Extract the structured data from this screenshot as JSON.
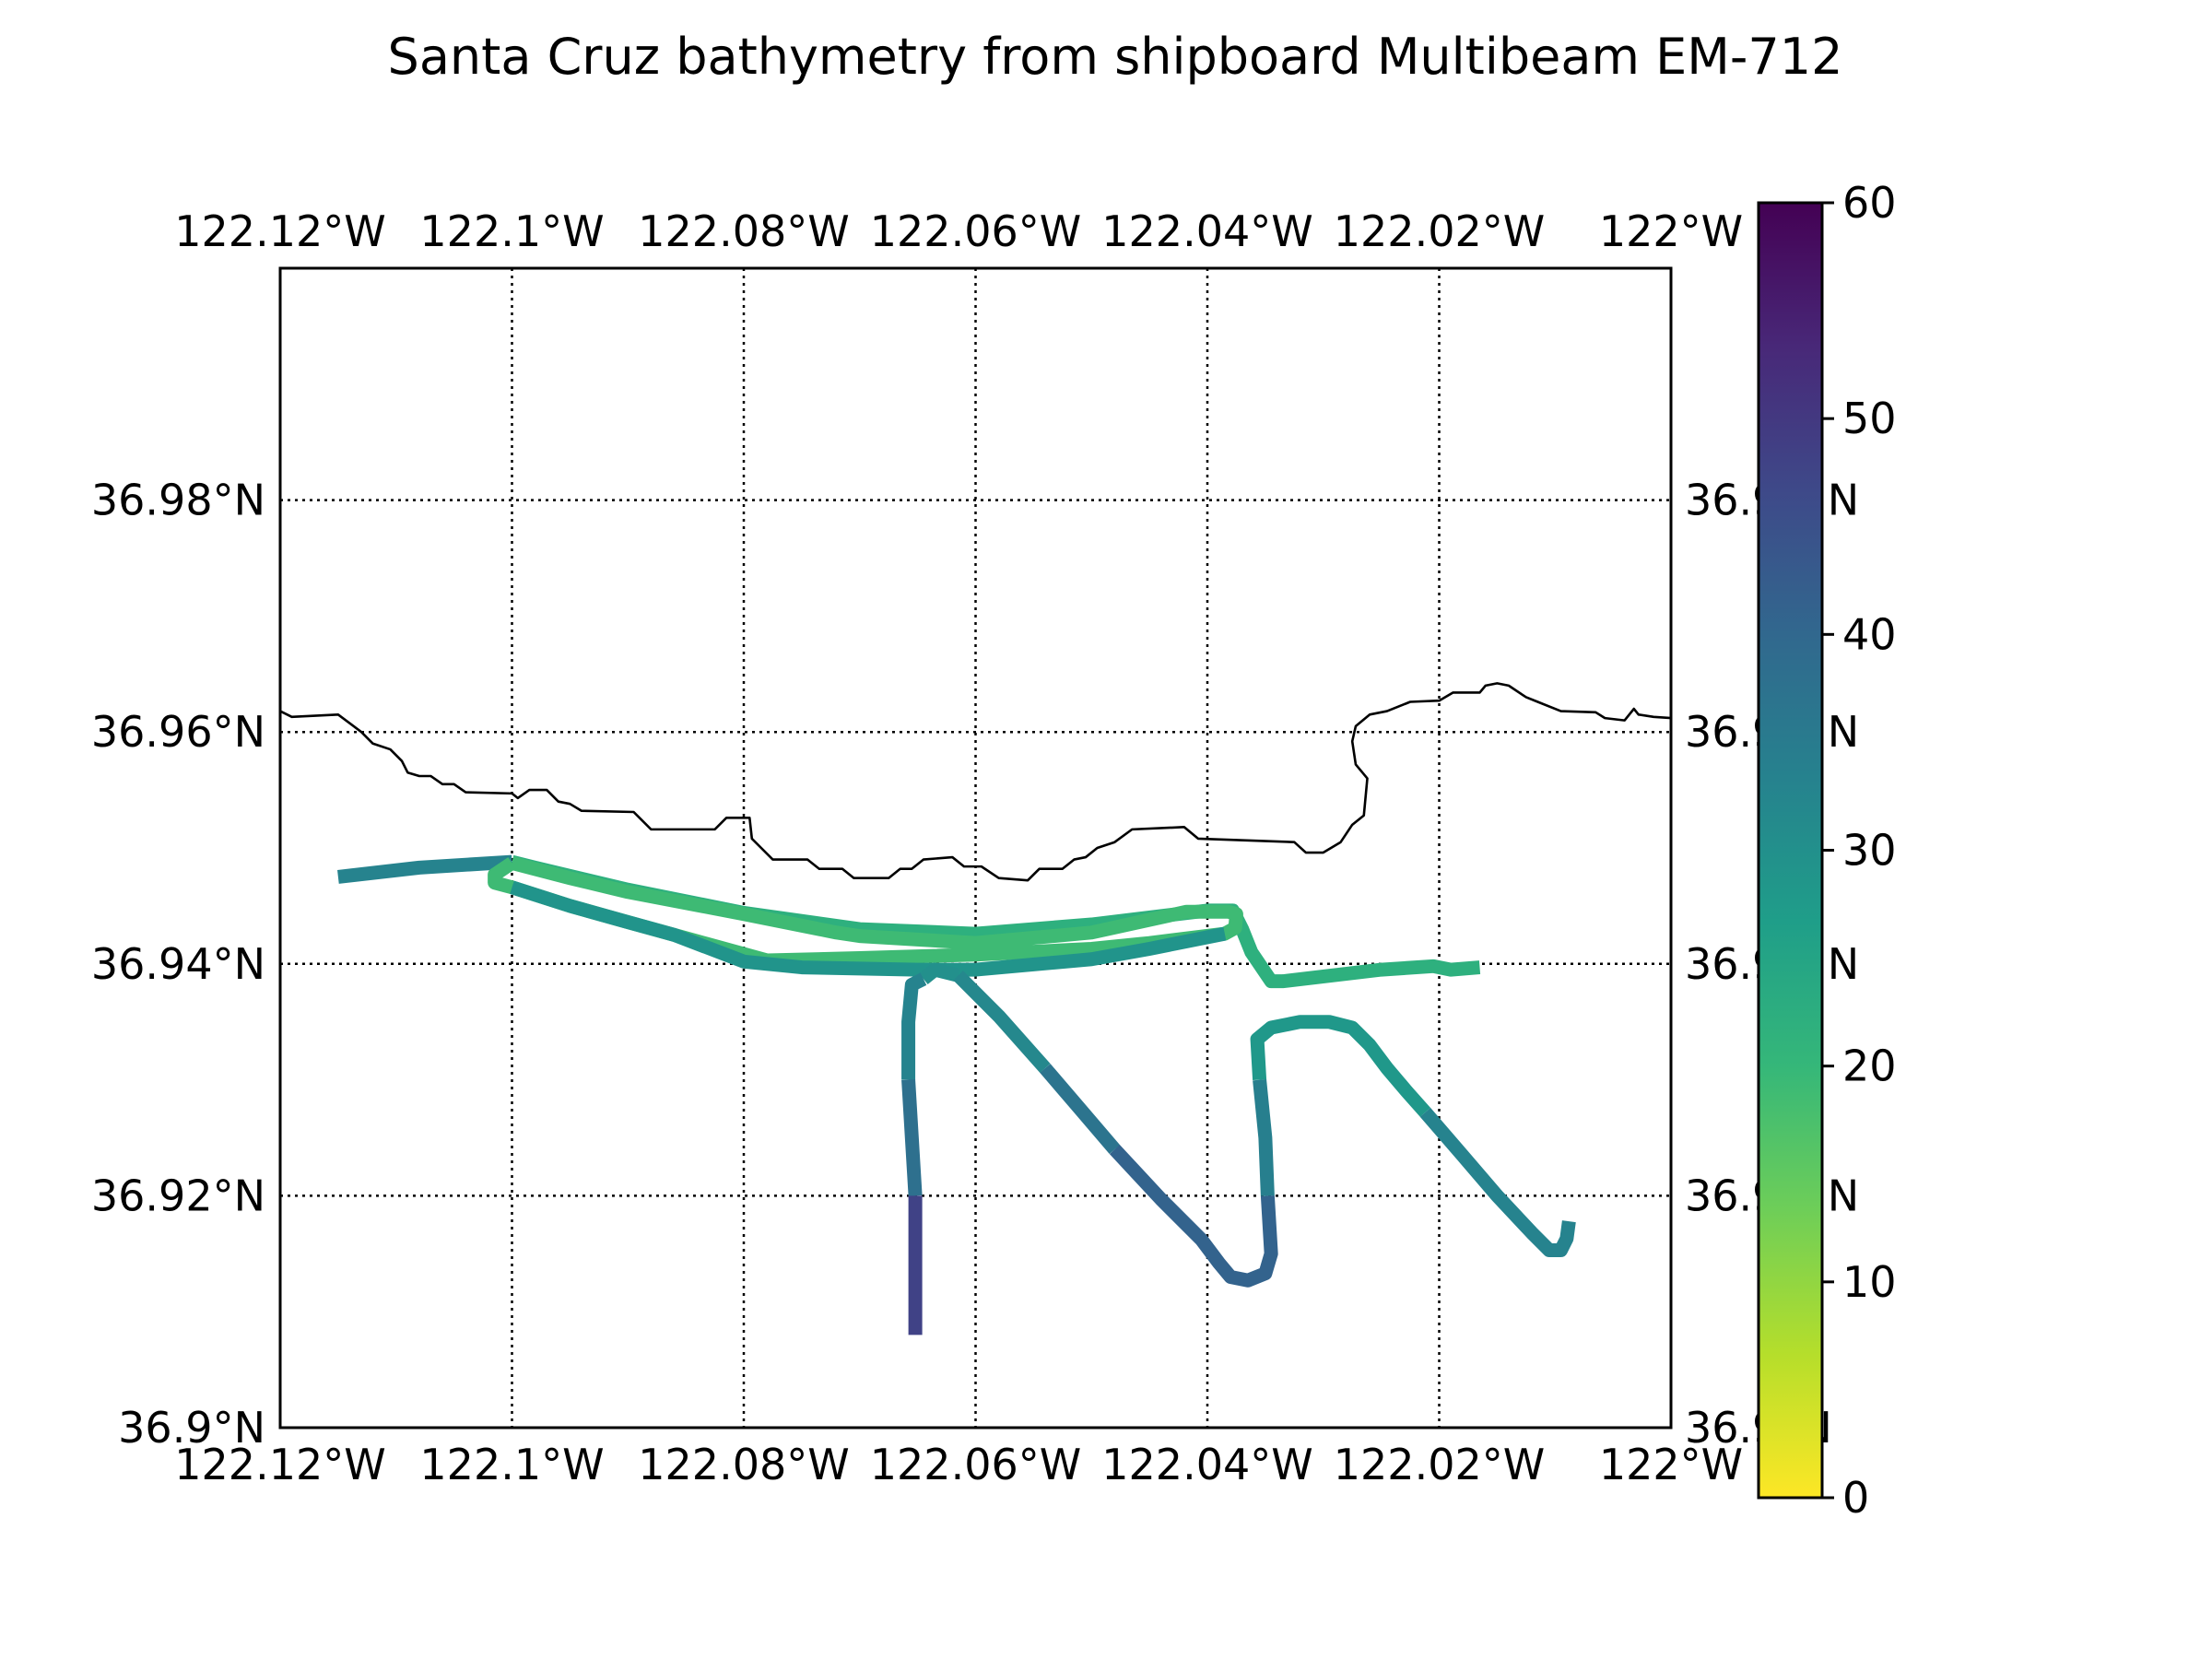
{
  "title": "Santa Cruz bathymetry from shipboard Multibeam EM-712",
  "colormap": "viridis",
  "colormap_stops": [
    "#fde725",
    "#b5de2b",
    "#6ece58",
    "#35b779",
    "#1f9e89",
    "#26828e",
    "#31688e",
    "#3e4989",
    "#482878",
    "#440154"
  ],
  "coastline_color": "#000000",
  "chart_data": {
    "type": "map",
    "grid": true,
    "grid_style": "dotted",
    "xlim": [
      -122.12,
      -122.0
    ],
    "ylim": [
      36.9,
      37.0
    ],
    "xticks": [
      -122.12,
      -122.1,
      -122.08,
      -122.06,
      -122.04,
      -122.02,
      -122.0
    ],
    "xtick_labels": [
      "122.12°W",
      "122.1°W",
      "122.08°W",
      "122.06°W",
      "122.04°W",
      "122.02°W",
      "122°W"
    ],
    "yticks": [
      36.9,
      36.92,
      36.94,
      36.96,
      36.98
    ],
    "ytick_labels": [
      "36.9°N",
      "36.92°N",
      "36.94°N",
      "36.96°N",
      "36.98°N"
    ],
    "ytick_labels_right": [
      "36.9°N",
      "36.92°N",
      "36.94°N",
      "36.96°N",
      "36.98°N"
    ],
    "colorbar": {
      "min": 0,
      "max": 60,
      "ticks": [
        0,
        10,
        20,
        30,
        40,
        50,
        60
      ],
      "tick_labels": [
        "0",
        "10",
        "20",
        "30",
        "40",
        "50",
        "60"
      ]
    },
    "coastline": [
      [
        -122.12,
        36.9618
      ],
      [
        -122.119,
        36.9613
      ],
      [
        -122.115,
        36.9615
      ],
      [
        -122.113,
        36.96
      ],
      [
        -122.112,
        36.959
      ],
      [
        -122.1105,
        36.9585
      ],
      [
        -122.1095,
        36.9575
      ],
      [
        -122.109,
        36.9565
      ],
      [
        -122.108,
        36.9562
      ],
      [
        -122.107,
        36.9562
      ],
      [
        -122.106,
        36.9555
      ],
      [
        -122.105,
        36.9555
      ],
      [
        -122.104,
        36.9548
      ],
      [
        -122.1,
        36.9547
      ],
      [
        -122.0995,
        36.9543
      ],
      [
        -122.0985,
        36.955
      ],
      [
        -122.097,
        36.955
      ],
      [
        -122.096,
        36.954
      ],
      [
        -122.095,
        36.9538
      ],
      [
        -122.094,
        36.9532
      ],
      [
        -122.0895,
        36.9531
      ],
      [
        -122.088,
        36.9516
      ],
      [
        -122.0825,
        36.9516
      ],
      [
        -122.0815,
        36.9526
      ],
      [
        -122.0795,
        36.9526
      ],
      [
        -122.0793,
        36.9508
      ],
      [
        -122.0785,
        36.95
      ],
      [
        -122.0775,
        36.949
      ],
      [
        -122.0745,
        36.949
      ],
      [
        -122.0735,
        36.9482
      ],
      [
        -122.0715,
        36.9482
      ],
      [
        -122.0705,
        36.9474
      ],
      [
        -122.0675,
        36.9474
      ],
      [
        -122.0665,
        36.9482
      ],
      [
        -122.0655,
        36.9482
      ],
      [
        -122.0645,
        36.949
      ],
      [
        -122.062,
        36.9492
      ],
      [
        -122.061,
        36.9484
      ],
      [
        -122.0595,
        36.9484
      ],
      [
        -122.058,
        36.9474
      ],
      [
        -122.0555,
        36.9472
      ],
      [
        -122.0545,
        36.9482
      ],
      [
        -122.0525,
        36.9482
      ],
      [
        -122.0515,
        36.949
      ],
      [
        -122.0505,
        36.9492
      ],
      [
        -122.0495,
        36.95
      ],
      [
        -122.048,
        36.9505
      ],
      [
        -122.0465,
        36.9516
      ],
      [
        -122.042,
        36.9518
      ],
      [
        -122.0408,
        36.9508
      ],
      [
        -122.0325,
        36.9505
      ],
      [
        -122.0315,
        36.9496
      ],
      [
        -122.03,
        36.9496
      ],
      [
        -122.0285,
        36.9505
      ],
      [
        -122.0275,
        36.952
      ],
      [
        -122.0265,
        36.9528
      ],
      [
        -122.0262,
        36.956
      ],
      [
        -122.0272,
        36.9572
      ],
      [
        -122.0275,
        36.9592
      ],
      [
        -122.0272,
        36.9605
      ],
      [
        -122.026,
        36.9615
      ],
      [
        -122.0245,
        36.9618
      ],
      [
        -122.0225,
        36.9626
      ],
      [
        -122.02,
        36.9627
      ],
      [
        -122.0188,
        36.9634
      ],
      [
        -122.0165,
        36.9634
      ],
      [
        -122.016,
        36.964
      ],
      [
        -122.015,
        36.9642
      ],
      [
        -122.014,
        36.964
      ],
      [
        -122.0125,
        36.963
      ],
      [
        -122.0115,
        36.9626
      ],
      [
        -122.0095,
        36.9618
      ],
      [
        -122.0065,
        36.9617
      ],
      [
        -122.0057,
        36.9612
      ],
      [
        -122.004,
        36.961
      ],
      [
        -122.0032,
        36.962
      ],
      [
        -122.0028,
        36.9615
      ],
      [
        -122.0015,
        36.9613
      ],
      [
        -122.0,
        36.9612
      ]
    ],
    "track_segments": [
      {
        "depth": 33,
        "points": [
          [
            -122.115,
            36.9475
          ],
          [
            -122.108,
            36.9483
          ],
          [
            -122.1,
            36.9488
          ]
        ]
      },
      {
        "depth": 22,
        "points": [
          [
            -122.1,
            36.9488
          ],
          [
            -122.098,
            36.9483
          ],
          [
            -122.09,
            36.9464
          ],
          [
            -122.08,
            36.9444
          ],
          [
            -122.07,
            36.943
          ],
          [
            -122.06,
            36.9426
          ],
          [
            -122.05,
            36.9434
          ],
          [
            -122.04,
            36.9446
          ],
          [
            -122.0378,
            36.9446
          ],
          [
            -122.037,
            36.943
          ],
          [
            -122.0362,
            36.941
          ],
          [
            -122.0345,
            36.9385
          ],
          [
            -122.0335,
            36.9385
          ],
          [
            -122.025,
            36.9395
          ],
          [
            -122.0205,
            36.9398
          ],
          [
            -122.019,
            36.9395
          ],
          [
            -122.0165,
            36.9397
          ]
        ]
      },
      {
        "depth": 19,
        "points": [
          [
            -122.1,
            36.9487
          ],
          [
            -122.095,
            36.9474
          ],
          [
            -122.09,
            36.9462
          ],
          [
            -122.08,
            36.9443
          ],
          [
            -122.072,
            36.9427
          ],
          [
            -122.07,
            36.9424
          ],
          [
            -122.065,
            36.9421
          ],
          [
            -122.06,
            36.9418
          ],
          [
            -122.05,
            36.9427
          ],
          [
            -122.045,
            36.9438
          ],
          [
            -122.0418,
            36.9445
          ],
          [
            -122.0382,
            36.9445
          ],
          [
            -122.0375,
            36.9443
          ],
          [
            -122.0376,
            36.9431
          ],
          [
            -122.0385,
            36.9426
          ],
          [
            -122.045,
            36.9418
          ],
          [
            -122.05,
            36.9413
          ],
          [
            -122.06,
            36.9408
          ],
          [
            -122.07,
            36.9405
          ],
          [
            -122.078,
            36.9403
          ],
          [
            -122.086,
            36.9425
          ],
          [
            -122.09,
            36.9436
          ],
          [
            -122.095,
            36.945
          ],
          [
            -122.1,
            36.9466
          ],
          [
            -122.1015,
            36.947
          ],
          [
            -122.1015,
            36.9477
          ],
          [
            -122.1,
            36.9487
          ]
        ]
      },
      {
        "depth": 29,
        "points": [
          [
            -122.1,
            36.9466
          ],
          [
            -122.095,
            36.945
          ],
          [
            -122.09,
            36.9436
          ],
          [
            -122.086,
            36.9425
          ],
          [
            -122.08,
            36.9402
          ],
          [
            -122.075,
            36.9397
          ],
          [
            -122.065,
            36.9395
          ],
          [
            -122.06,
            36.9395
          ],
          [
            -122.05,
            36.9404
          ],
          [
            -122.045,
            36.9413
          ],
          [
            -122.0385,
            36.9426
          ]
        ]
      },
      {
        "depth": 30,
        "points": [
          [
            -122.0645,
            36.9387
          ],
          [
            -122.0635,
            36.9395
          ],
          [
            -122.0615,
            36.939
          ]
        ]
      },
      {
        "depth": 33,
        "points": [
          [
            -122.0645,
            36.9387
          ],
          [
            -122.0655,
            36.9382
          ],
          [
            -122.0658,
            36.935
          ],
          [
            -122.0658,
            36.93
          ]
        ]
      },
      {
        "depth": 38,
        "points": [
          [
            -122.0658,
            36.93
          ],
          [
            -122.0655,
            36.925
          ],
          [
            -122.0652,
            36.92
          ]
        ]
      },
      {
        "depth": 48,
        "points": [
          [
            -122.0652,
            36.92
          ],
          [
            -122.0652,
            36.915
          ],
          [
            -122.0652,
            36.908
          ]
        ]
      },
      {
        "depth": 32,
        "points": [
          [
            -122.0615,
            36.939
          ],
          [
            -122.058,
            36.9355
          ],
          [
            -122.054,
            36.931
          ]
        ]
      },
      {
        "depth": 37,
        "points": [
          [
            -122.054,
            36.931
          ],
          [
            -122.051,
            36.9275
          ],
          [
            -122.048,
            36.924
          ]
        ]
      },
      {
        "depth": 41,
        "points": [
          [
            -122.048,
            36.924
          ],
          [
            -122.044,
            36.9197
          ],
          [
            -122.0405,
            36.9162
          ],
          [
            -122.039,
            36.9142
          ],
          [
            -122.038,
            36.913
          ],
          [
            -122.0365,
            36.9127
          ],
          [
            -122.035,
            36.9133
          ],
          [
            -122.0345,
            36.915
          ],
          [
            -122.0348,
            36.92
          ]
        ]
      },
      {
        "depth": 34,
        "points": [
          [
            -122.0348,
            36.92
          ],
          [
            -122.035,
            36.925
          ],
          [
            -122.0355,
            36.93
          ]
        ]
      },
      {
        "depth": 28,
        "points": [
          [
            -122.0355,
            36.93
          ],
          [
            -122.0357,
            36.9335
          ],
          [
            -122.0345,
            36.9345
          ],
          [
            -122.032,
            36.935
          ],
          [
            -122.0295,
            36.935
          ],
          [
            -122.0275,
            36.9345
          ],
          [
            -122.026,
            36.933
          ],
          [
            -122.0245,
            36.931
          ],
          [
            -122.0228,
            36.929
          ],
          [
            -122.0212,
            36.9272
          ]
        ]
      },
      {
        "depth": 33,
        "points": [
          [
            -122.0212,
            36.9272
          ],
          [
            -122.018,
            36.9235
          ],
          [
            -122.015,
            36.92
          ],
          [
            -122.012,
            36.9168
          ],
          [
            -122.0105,
            36.9153
          ],
          [
            -122.0095,
            36.9153
          ],
          [
            -122.009,
            36.9163
          ],
          [
            -122.0088,
            36.9178
          ]
        ]
      }
    ]
  }
}
